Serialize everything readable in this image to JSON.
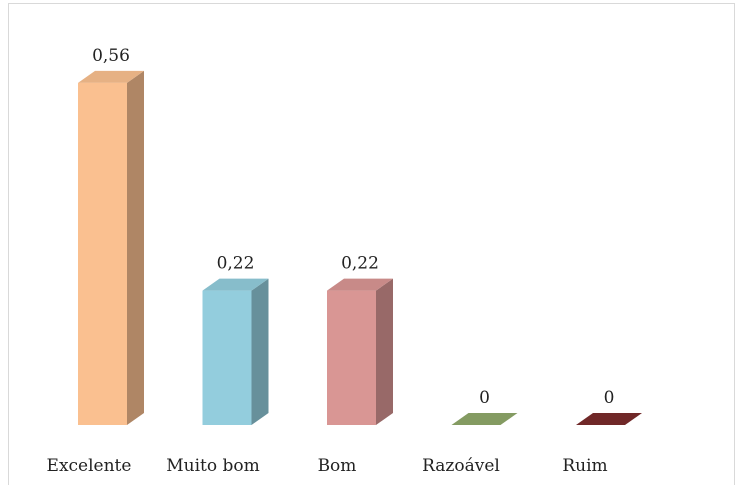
{
  "chart_data": {
    "type": "bar3d",
    "categories": [
      "Excelente",
      "Muito bom",
      "Bom",
      "Razoável",
      "Ruim"
    ],
    "values": [
      0.56,
      0.22,
      0.22,
      0,
      0
    ],
    "value_labels": [
      "0,56",
      "0,22",
      "0,22",
      "0",
      "0"
    ],
    "colors": [
      "#fac090",
      "#93cddd",
      "#d99694",
      "#8fa86a",
      "#7a2b2b"
    ]
  }
}
